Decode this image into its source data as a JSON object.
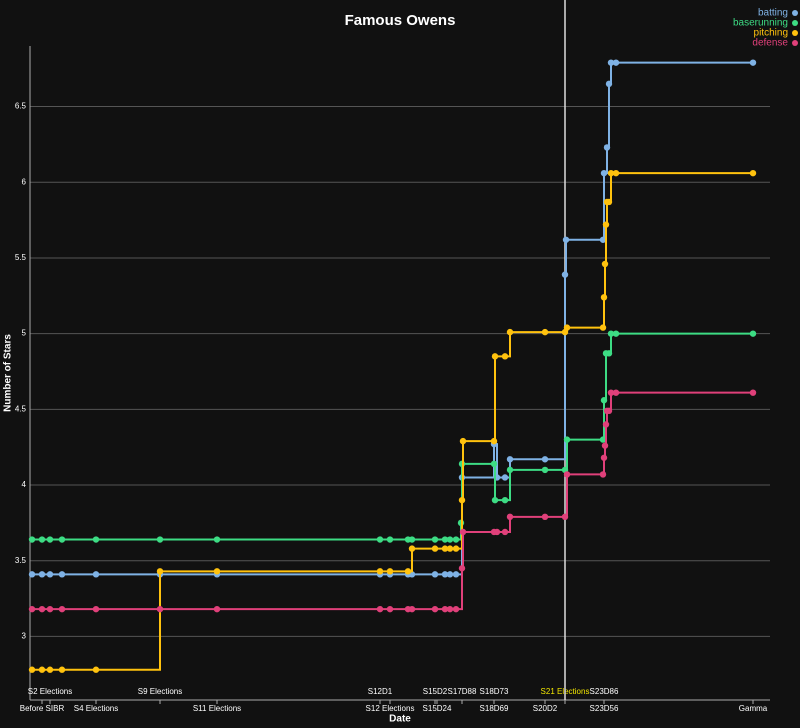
{
  "chart_data": {
    "type": "step",
    "title": "Famous Owens",
    "xlabel": "Date",
    "ylabel": "Number of Stars",
    "xlim": [
      30,
      770
    ],
    "ylim": [
      2.58,
      6.9
    ],
    "yticks": [
      3,
      3.5,
      4,
      4.5,
      5,
      5.5,
      6,
      6.5
    ],
    "grid": true,
    "legend": "top-right",
    "marker_line": 565,
    "xticks": [
      {
        "value": 42,
        "label": "Before SIBR"
      },
      {
        "value": 96,
        "label": "S4 Elections"
      },
      {
        "value": 217,
        "label": "S11 Elections"
      },
      {
        "value": 390,
        "label": "S12 Elections"
      },
      {
        "value": 437,
        "label": "S15D24"
      },
      {
        "value": 494,
        "label": "S18D69"
      },
      {
        "value": 545,
        "label": "S20D2"
      },
      {
        "value": 604,
        "label": "S23D56"
      },
      {
        "value": 753,
        "label": "Gamma"
      }
    ],
    "xticks_top": [
      {
        "value": 50,
        "label": "S2 Elections"
      },
      {
        "value": 160,
        "label": "S9 Elections"
      },
      {
        "value": 380,
        "label": "S12D1"
      },
      {
        "value": 435,
        "label": "S15D2"
      },
      {
        "value": 462,
        "label": "S17D88"
      },
      {
        "value": 494,
        "label": "S18D73"
      },
      {
        "value": 565,
        "label": "S21 Elections",
        "color": "#f2e600"
      },
      {
        "value": 604,
        "label": "S23D86"
      }
    ],
    "series": [
      {
        "name": "batting",
        "color": "#7fb2e5",
        "x": [
          32,
          42,
          50,
          62,
          96,
          160,
          217,
          380,
          390,
          408,
          412,
          435,
          445,
          450,
          456,
          462,
          494,
          497,
          505,
          510,
          545,
          565,
          566,
          603,
          604,
          607,
          609,
          611,
          616,
          753
        ],
        "values": [
          3.41,
          3.41,
          3.41,
          3.41,
          3.41,
          3.41,
          3.41,
          3.41,
          3.41,
          3.41,
          3.41,
          3.41,
          3.41,
          3.41,
          3.41,
          4.05,
          4.27,
          4.05,
          4.05,
          4.17,
          4.17,
          5.39,
          5.62,
          5.62,
          6.06,
          6.23,
          6.65,
          6.79,
          6.79,
          6.79
        ]
      },
      {
        "name": "baserunning",
        "color": "#3ddc84",
        "x": [
          32,
          42,
          50,
          62,
          96,
          160,
          217,
          380,
          390,
          408,
          412,
          435,
          445,
          450,
          456,
          461,
          462,
          494,
          495,
          505,
          510,
          545,
          565,
          567,
          603,
          604,
          606,
          609,
          611,
          616,
          753
        ],
        "values": [
          3.64,
          3.64,
          3.64,
          3.64,
          3.64,
          3.64,
          3.64,
          3.64,
          3.64,
          3.64,
          3.64,
          3.64,
          3.64,
          3.64,
          3.64,
          3.75,
          4.14,
          4.14,
          3.9,
          3.9,
          4.1,
          4.1,
          4.1,
          4.3,
          4.3,
          4.56,
          4.87,
          4.87,
          5.0,
          5.0,
          5.0
        ]
      },
      {
        "name": "pitching",
        "color": "#ffc20e",
        "x": [
          32,
          42,
          50,
          62,
          96,
          160,
          217,
          380,
          390,
          408,
          412,
          435,
          445,
          450,
          456,
          462,
          463,
          494,
          495,
          505,
          510,
          545,
          565,
          567,
          603,
          604,
          605,
          606,
          607,
          609,
          611,
          616,
          753
        ],
        "values": [
          2.78,
          2.78,
          2.78,
          2.78,
          2.78,
          3.43,
          3.43,
          3.43,
          3.43,
          3.43,
          3.58,
          3.58,
          3.58,
          3.58,
          3.58,
          3.9,
          4.29,
          4.29,
          4.85,
          4.85,
          5.01,
          5.01,
          5.01,
          5.04,
          5.04,
          5.24,
          5.46,
          5.72,
          5.87,
          5.87,
          6.06,
          6.06,
          6.06
        ]
      },
      {
        "name": "defense",
        "color": "#e0407a",
        "x": [
          32,
          42,
          50,
          62,
          96,
          160,
          217,
          380,
          390,
          408,
          412,
          435,
          445,
          450,
          456,
          462,
          463,
          494,
          497,
          505,
          510,
          545,
          565,
          567,
          603,
          604,
          605,
          606,
          607,
          609,
          611,
          616,
          753
        ],
        "values": [
          3.18,
          3.18,
          3.18,
          3.18,
          3.18,
          3.18,
          3.18,
          3.18,
          3.18,
          3.18,
          3.18,
          3.18,
          3.18,
          3.18,
          3.18,
          3.45,
          3.69,
          3.69,
          3.69,
          3.69,
          3.79,
          3.79,
          3.79,
          4.07,
          4.07,
          4.18,
          4.26,
          4.4,
          4.49,
          4.49,
          4.61,
          4.61,
          4.61
        ]
      }
    ]
  }
}
